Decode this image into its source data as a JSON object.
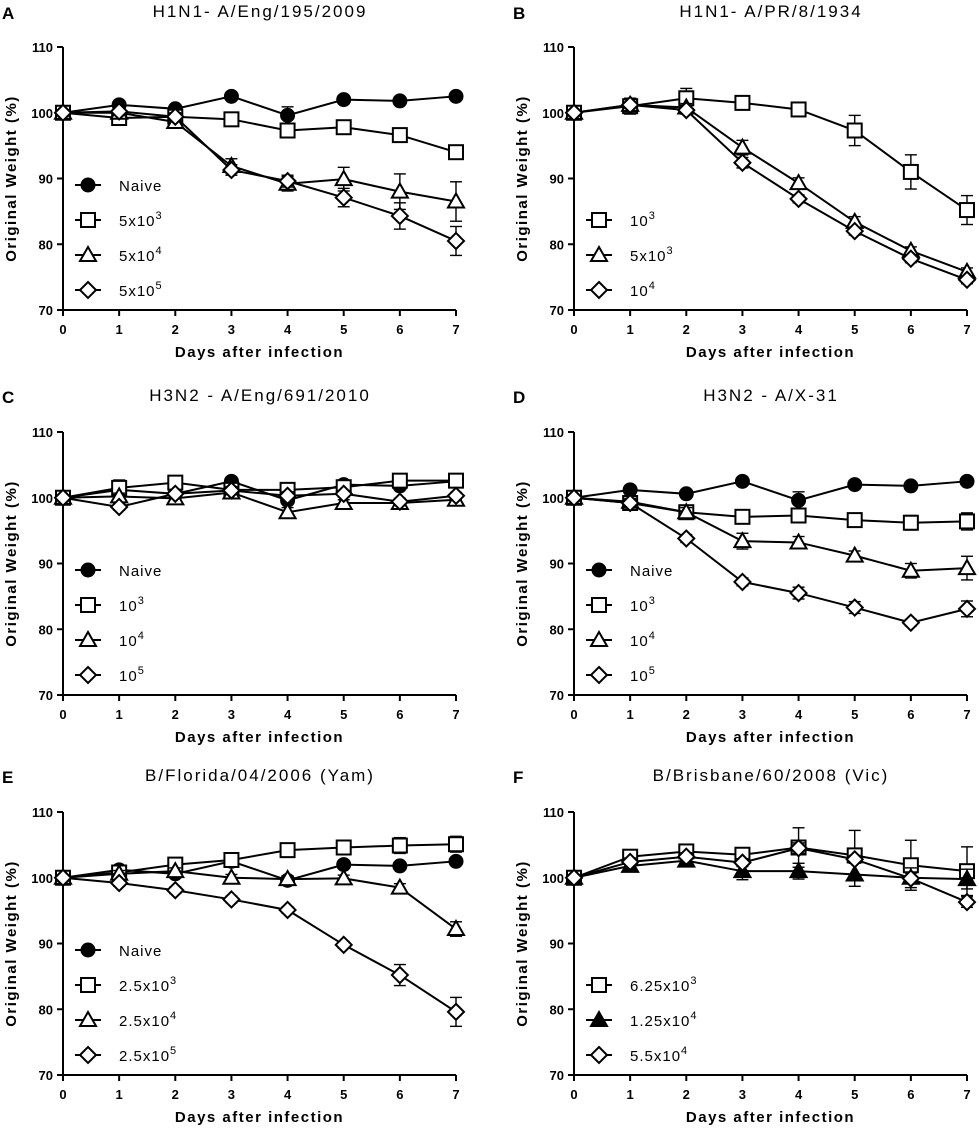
{
  "chart_data": [
    {
      "panel": "A",
      "type": "line",
      "title": "H1N1- A/Eng/195/2009",
      "xlabel": "Days after infection",
      "ylabel": "Original Weight (%)",
      "xlim": [
        0,
        7
      ],
      "ylim": [
        70,
        110
      ],
      "xticks": [
        0,
        1,
        2,
        3,
        4,
        5,
        6,
        7
      ],
      "yticks": [
        70,
        80,
        90,
        100,
        110
      ],
      "x": [
        0,
        1,
        2,
        3,
        4,
        5,
        6,
        7
      ],
      "series": [
        {
          "name": "Naive",
          "marker": "filled-circle",
          "label_base": "Naive",
          "label_sup": "",
          "values": [
            100,
            101.2,
            100.6,
            102.5,
            99.6,
            102,
            101.8,
            102.5
          ],
          "errors": [
            0,
            0.4,
            0.5,
            0.4,
            1.3,
            0.4,
            0.4,
            0.4
          ]
        },
        {
          "name": "5x10^3",
          "marker": "open-square",
          "label_base": "5x10",
          "label_sup": "3",
          "values": [
            100,
            99.2,
            99.4,
            99,
            97.3,
            97.8,
            96.6,
            94
          ],
          "errors": [
            0,
            0.5,
            0.5,
            0.5,
            0.7,
            0.6,
            0.7,
            0.6
          ]
        },
        {
          "name": "5x10^4",
          "marker": "open-triangle",
          "label_base": "5x10",
          "label_sup": "4",
          "values": [
            100,
            100,
            98.6,
            91.9,
            89.2,
            89.9,
            88,
            86.5
          ],
          "errors": [
            0,
            0.5,
            0.7,
            1.1,
            1.1,
            1.8,
            2.7,
            3
          ]
        },
        {
          "name": "5x10^5",
          "marker": "open-diamond",
          "label_base": "5x10",
          "label_sup": "5",
          "values": [
            100,
            100.2,
            99.4,
            91.3,
            89.6,
            87.1,
            84.3,
            80.5
          ],
          "errors": [
            0,
            0.5,
            0.6,
            0.8,
            0.9,
            1.4,
            2,
            2.2
          ]
        }
      ]
    },
    {
      "panel": "B",
      "type": "line",
      "title": "H1N1- A/PR/8/1934",
      "xlabel": "Days after infection",
      "ylabel": "Original Weight (%)",
      "xlim": [
        0,
        7
      ],
      "ylim": [
        70,
        110
      ],
      "xticks": [
        0,
        1,
        2,
        3,
        4,
        5,
        6,
        7
      ],
      "yticks": [
        70,
        80,
        90,
        100,
        110
      ],
      "x": [
        0,
        1,
        2,
        3,
        4,
        5,
        6,
        7
      ],
      "series": [
        {
          "name": "10^3",
          "marker": "open-square",
          "label_base": "10",
          "label_sup": "3",
          "values": [
            100,
            101,
            102.2,
            101.5,
            100.5,
            97.3,
            91,
            85.2
          ],
          "errors": [
            0,
            1.2,
            1.5,
            0.6,
            0.9,
            2.3,
            2.6,
            2.2
          ]
        },
        {
          "name": "5x10^3",
          "marker": "open-triangle",
          "label_base": "5x10",
          "label_sup": "3",
          "values": [
            100,
            101.2,
            100.8,
            94.7,
            89.3,
            83.4,
            79,
            75.8
          ],
          "errors": [
            0,
            1,
            0.6,
            1.1,
            0.8,
            0.8,
            0.6,
            0.6
          ]
        },
        {
          "name": "10^4",
          "marker": "open-diamond",
          "label_base": "10",
          "label_sup": "4",
          "values": [
            100,
            101.2,
            100.4,
            92.4,
            86.9,
            82,
            77.8,
            74.6
          ],
          "errors": [
            0,
            1,
            0.6,
            0.8,
            0.6,
            0.6,
            0.6,
            0.6
          ]
        }
      ]
    },
    {
      "panel": "C",
      "type": "line",
      "title": "H3N2 - A/Eng/691/2010",
      "xlabel": "Days after infection",
      "ylabel": "Original Weight (%)",
      "xlim": [
        0,
        7
      ],
      "ylim": [
        70,
        110
      ],
      "xticks": [
        0,
        1,
        2,
        3,
        4,
        5,
        6,
        7
      ],
      "yticks": [
        70,
        80,
        90,
        100,
        110
      ],
      "x": [
        0,
        1,
        2,
        3,
        4,
        5,
        6,
        7
      ],
      "series": [
        {
          "name": "Naive",
          "marker": "filled-circle",
          "label_base": "Naive",
          "label_sup": "",
          "values": [
            100,
            101.2,
            100.6,
            102.5,
            99.6,
            102,
            101.8,
            102.5
          ],
          "errors": [
            0,
            0.4,
            0.4,
            0.4,
            0.6,
            0.4,
            0.4,
            0.4
          ]
        },
        {
          "name": "10^3",
          "marker": "open-square",
          "label_base": "10",
          "label_sup": "3",
          "values": [
            100,
            101.5,
            102.3,
            101.2,
            101.2,
            101.6,
            102.6,
            102.6
          ],
          "errors": [
            0,
            1.2,
            0.6,
            0.6,
            0.5,
            0.5,
            0.4,
            0.6
          ]
        },
        {
          "name": "10^4",
          "marker": "open-triangle",
          "label_base": "10",
          "label_sup": "4",
          "values": [
            100,
            100.2,
            99.9,
            100.8,
            97.8,
            99.2,
            99.2,
            99.7
          ],
          "errors": [
            0,
            0.5,
            0.5,
            0.6,
            0.7,
            0.5,
            0.5,
            0.5
          ]
        },
        {
          "name": "10^5",
          "marker": "open-diamond",
          "label_base": "10",
          "label_sup": "5",
          "values": [
            100,
            98.6,
            100.6,
            101.1,
            100.3,
            100.6,
            99.4,
            100.3
          ],
          "errors": [
            0,
            0.5,
            0.6,
            0.6,
            0.6,
            0.5,
            0.5,
            0.5
          ]
        }
      ]
    },
    {
      "panel": "D",
      "type": "line",
      "title": "H3N2 - A/X-31",
      "xlabel": "Days after infection",
      "ylabel": "Original Weight (%)",
      "xlim": [
        0,
        7
      ],
      "ylim": [
        70,
        110
      ],
      "xticks": [
        0,
        1,
        2,
        3,
        4,
        5,
        6,
        7
      ],
      "yticks": [
        70,
        80,
        90,
        100,
        110
      ],
      "x": [
        0,
        1,
        2,
        3,
        4,
        5,
        6,
        7
      ],
      "series": [
        {
          "name": "Naive",
          "marker": "filled-circle",
          "label_base": "Naive",
          "label_sup": "",
          "values": [
            100,
            101.2,
            100.6,
            102.5,
            99.6,
            102,
            101.8,
            102.5
          ],
          "errors": [
            0,
            0.4,
            0.4,
            0.4,
            1.3,
            0.4,
            0.4,
            0.4
          ]
        },
        {
          "name": "10^3",
          "marker": "open-square",
          "label_base": "10",
          "label_sup": "3",
          "values": [
            100,
            99.2,
            97.8,
            97.1,
            97.3,
            96.6,
            96.2,
            96.4
          ],
          "errors": [
            0,
            0.5,
            0.6,
            0.6,
            0.9,
            0.6,
            1.1,
            1.3
          ]
        },
        {
          "name": "10^4",
          "marker": "open-triangle",
          "label_base": "10",
          "label_sup": "4",
          "values": [
            100,
            99.4,
            97.8,
            93.4,
            93.2,
            91.2,
            88.9,
            89.3
          ],
          "errors": [
            0,
            0.5,
            0.7,
            1.2,
            0.9,
            0.7,
            1.1,
            1.8
          ]
        },
        {
          "name": "10^5",
          "marker": "open-diamond",
          "label_base": "10",
          "label_sup": "5",
          "values": [
            100,
            99.2,
            93.8,
            87.2,
            85.5,
            83.3,
            81,
            83.1
          ],
          "errors": [
            0,
            0.5,
            0.6,
            0.6,
            0.9,
            0.9,
            0.5,
            1.2
          ]
        }
      ]
    },
    {
      "panel": "E",
      "type": "line",
      "title": "B/Florida/04/2006 (Yam)",
      "xlabel": "Days after infection",
      "ylabel": "Original Weight (%)",
      "xlim": [
        0,
        7
      ],
      "ylim": [
        70,
        110
      ],
      "xticks": [
        0,
        1,
        2,
        3,
        4,
        5,
        6,
        7
      ],
      "yticks": [
        70,
        80,
        90,
        100,
        110
      ],
      "x": [
        0,
        1,
        2,
        3,
        4,
        5,
        6,
        7
      ],
      "series": [
        {
          "name": "Naive",
          "marker": "filled-circle",
          "label_base": "Naive",
          "label_sup": "",
          "values": [
            100,
            101.2,
            100.6,
            102.5,
            99.6,
            102,
            101.8,
            102.5
          ],
          "errors": [
            0,
            0.4,
            0.4,
            0.5,
            0.7,
            0.4,
            0.4,
            0.4
          ]
        },
        {
          "name": "2.5x10^3",
          "marker": "open-square",
          "label_base": "2.5x10",
          "label_sup": "3",
          "values": [
            100,
            100.8,
            102,
            102.7,
            104.2,
            104.6,
            104.9,
            105.1
          ],
          "errors": [
            0,
            0.6,
            0.6,
            0.6,
            1,
            1.1,
            1.2,
            1.2
          ]
        },
        {
          "name": "2.5x10^4",
          "marker": "open-triangle",
          "label_base": "2.5x10",
          "label_sup": "4",
          "values": [
            100,
            100.6,
            101,
            100,
            99.8,
            99.9,
            98.5,
            92.2
          ],
          "errors": [
            0,
            0.5,
            0.5,
            0.5,
            0.5,
            0.5,
            0.6,
            1.1
          ]
        },
        {
          "name": "2.5x10^5",
          "marker": "open-diamond",
          "label_base": "2.5x10",
          "label_sup": "5",
          "values": [
            100,
            99.2,
            98.1,
            96.7,
            95.1,
            89.8,
            85.2,
            79.6
          ],
          "errors": [
            0,
            0.5,
            0.5,
            0.5,
            0.5,
            0.5,
            1.6,
            2.2
          ]
        }
      ]
    },
    {
      "panel": "F",
      "type": "line",
      "title": "B/Brisbane/60/2008 (Vic)",
      "xlabel": "Days after infection",
      "ylabel": "Original Weight (%)",
      "xlim": [
        0,
        7
      ],
      "ylim": [
        70,
        110
      ],
      "xticks": [
        0,
        1,
        2,
        3,
        4,
        5,
        6,
        7
      ],
      "yticks": [
        70,
        80,
        90,
        100,
        110
      ],
      "x": [
        0,
        1,
        2,
        3,
        4,
        5,
        6,
        7
      ],
      "series": [
        {
          "name": "6.25x10^3",
          "marker": "open-square",
          "label_base": "6.25x10",
          "label_sup": "3",
          "values": [
            100,
            103.2,
            104,
            103.5,
            104.6,
            103.4,
            101.9,
            101
          ],
          "errors": [
            0,
            0.8,
            0.9,
            1,
            3,
            3.8,
            3.8,
            3.7
          ]
        },
        {
          "name": "1.25x10^4",
          "marker": "filled-triangle",
          "label_base": "1.25x10",
          "label_sup": "4",
          "values": [
            100,
            101.8,
            102.6,
            101,
            101,
            100.5,
            100,
            99.8
          ],
          "errors": [
            0,
            0.6,
            0.8,
            1.3,
            1.2,
            1.8,
            1.5,
            1.5
          ]
        },
        {
          "name": "5.5x10^4",
          "marker": "open-diamond",
          "label_base": "5.5x10",
          "label_sup": "4",
          "values": [
            100,
            102.4,
            103.2,
            102.3,
            104.5,
            102.8,
            99.9,
            96.3
          ],
          "errors": [
            0,
            0.6,
            0.6,
            0.6,
            0.8,
            0.6,
            0.8,
            0.8
          ]
        }
      ]
    }
  ]
}
